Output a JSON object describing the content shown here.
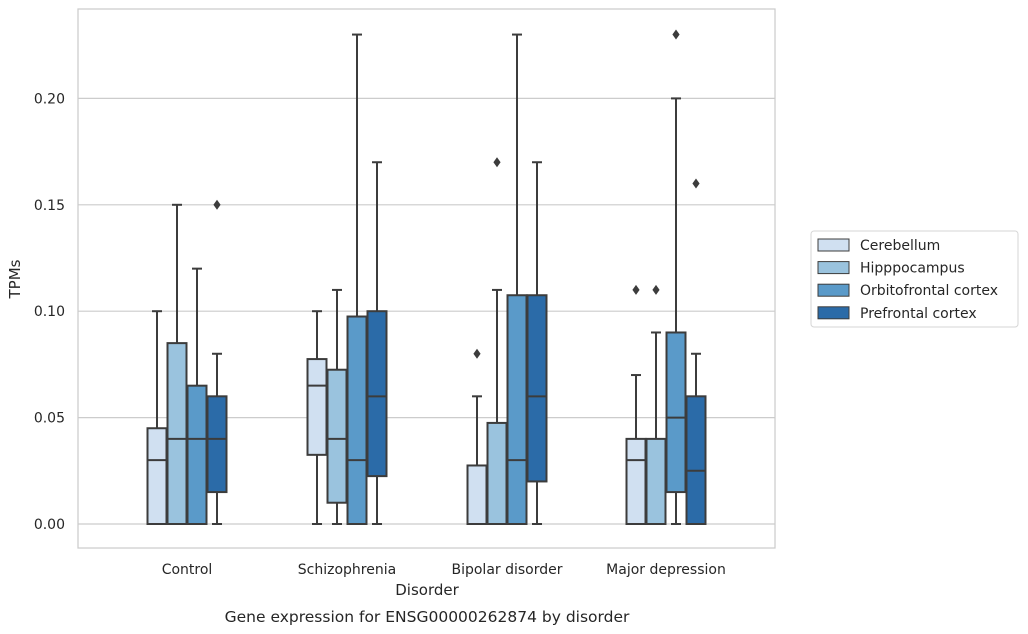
{
  "chart_data": {
    "type": "box",
    "xlabel": "Disorder",
    "ylabel": "TPMs",
    "caption": "Gene expression for ENSG00000262874 by disorder",
    "ylim": [
      -0.011,
      0.241
    ],
    "yticks": [
      "0.00",
      "0.05",
      "0.10",
      "0.15",
      "0.20"
    ],
    "ytick_values": [
      0.0,
      0.05,
      0.1,
      0.15,
      0.2
    ],
    "grid": "horizontal",
    "legend_position": "right",
    "categories": [
      "Control",
      "Schizophrenia",
      "Bipolar disorder",
      "Major depression"
    ],
    "series": [
      {
        "name": "Cerebellum",
        "color": "#d0e0f1",
        "boxes": [
          {
            "whisker_low": 0.0,
            "q1": 0.0,
            "median": 0.03,
            "q3": 0.045,
            "whisker_high": 0.1,
            "outliers": []
          },
          {
            "whisker_low": 0.0,
            "q1": 0.0325,
            "median": 0.065,
            "q3": 0.0775,
            "whisker_high": 0.1,
            "outliers": []
          },
          {
            "whisker_low": 0.0,
            "q1": 0.0,
            "median": 0.0,
            "q3": 0.0275,
            "whisker_high": 0.06,
            "outliers": [
              0.08
            ]
          },
          {
            "whisker_low": 0.0,
            "q1": 0.0,
            "median": 0.03,
            "q3": 0.04,
            "whisker_high": 0.07,
            "outliers": [
              0.11
            ]
          }
        ]
      },
      {
        "name": "Hipppocampus",
        "color": "#9ac3de",
        "boxes": [
          {
            "whisker_low": 0.0,
            "q1": 0.0,
            "median": 0.04,
            "q3": 0.085,
            "whisker_high": 0.15,
            "outliers": []
          },
          {
            "whisker_low": 0.0,
            "q1": 0.01,
            "median": 0.04,
            "q3": 0.0725,
            "whisker_high": 0.11,
            "outliers": []
          },
          {
            "whisker_low": 0.0,
            "q1": 0.0,
            "median": 0.0,
            "q3": 0.0475,
            "whisker_high": 0.11,
            "outliers": [
              0.17
            ]
          },
          {
            "whisker_low": 0.0,
            "q1": 0.0,
            "median": 0.0,
            "q3": 0.04,
            "whisker_high": 0.09,
            "outliers": [
              0.11
            ]
          }
        ]
      },
      {
        "name": "Orbitofrontal cortex",
        "color": "#5a9ac9",
        "boxes": [
          {
            "whisker_low": 0.0,
            "q1": 0.0,
            "median": 0.04,
            "q3": 0.065,
            "whisker_high": 0.12,
            "outliers": []
          },
          {
            "whisker_low": 0.0,
            "q1": 0.0,
            "median": 0.03,
            "q3": 0.0975,
            "whisker_high": 0.23,
            "outliers": []
          },
          {
            "whisker_low": 0.0,
            "q1": 0.0,
            "median": 0.03,
            "q3": 0.1075,
            "whisker_high": 0.23,
            "outliers": []
          },
          {
            "whisker_low": 0.0,
            "q1": 0.015,
            "median": 0.05,
            "q3": 0.09,
            "whisker_high": 0.2,
            "outliers": [
              0.23
            ]
          }
        ]
      },
      {
        "name": "Prefrontal cortex",
        "color": "#2b6ba8",
        "boxes": [
          {
            "whisker_low": 0.0,
            "q1": 0.015,
            "median": 0.04,
            "q3": 0.06,
            "whisker_high": 0.08,
            "outliers": [
              0.15
            ]
          },
          {
            "whisker_low": 0.0,
            "q1": 0.0225,
            "median": 0.06,
            "q3": 0.1,
            "whisker_high": 0.17,
            "outliers": []
          },
          {
            "whisker_low": 0.0,
            "q1": 0.02,
            "median": 0.06,
            "q3": 0.1075,
            "whisker_high": 0.17,
            "outliers": []
          },
          {
            "whisker_low": 0.0,
            "q1": 0.0,
            "median": 0.025,
            "q3": 0.06,
            "whisker_high": 0.08,
            "outliers": [
              0.16
            ]
          }
        ]
      }
    ]
  }
}
